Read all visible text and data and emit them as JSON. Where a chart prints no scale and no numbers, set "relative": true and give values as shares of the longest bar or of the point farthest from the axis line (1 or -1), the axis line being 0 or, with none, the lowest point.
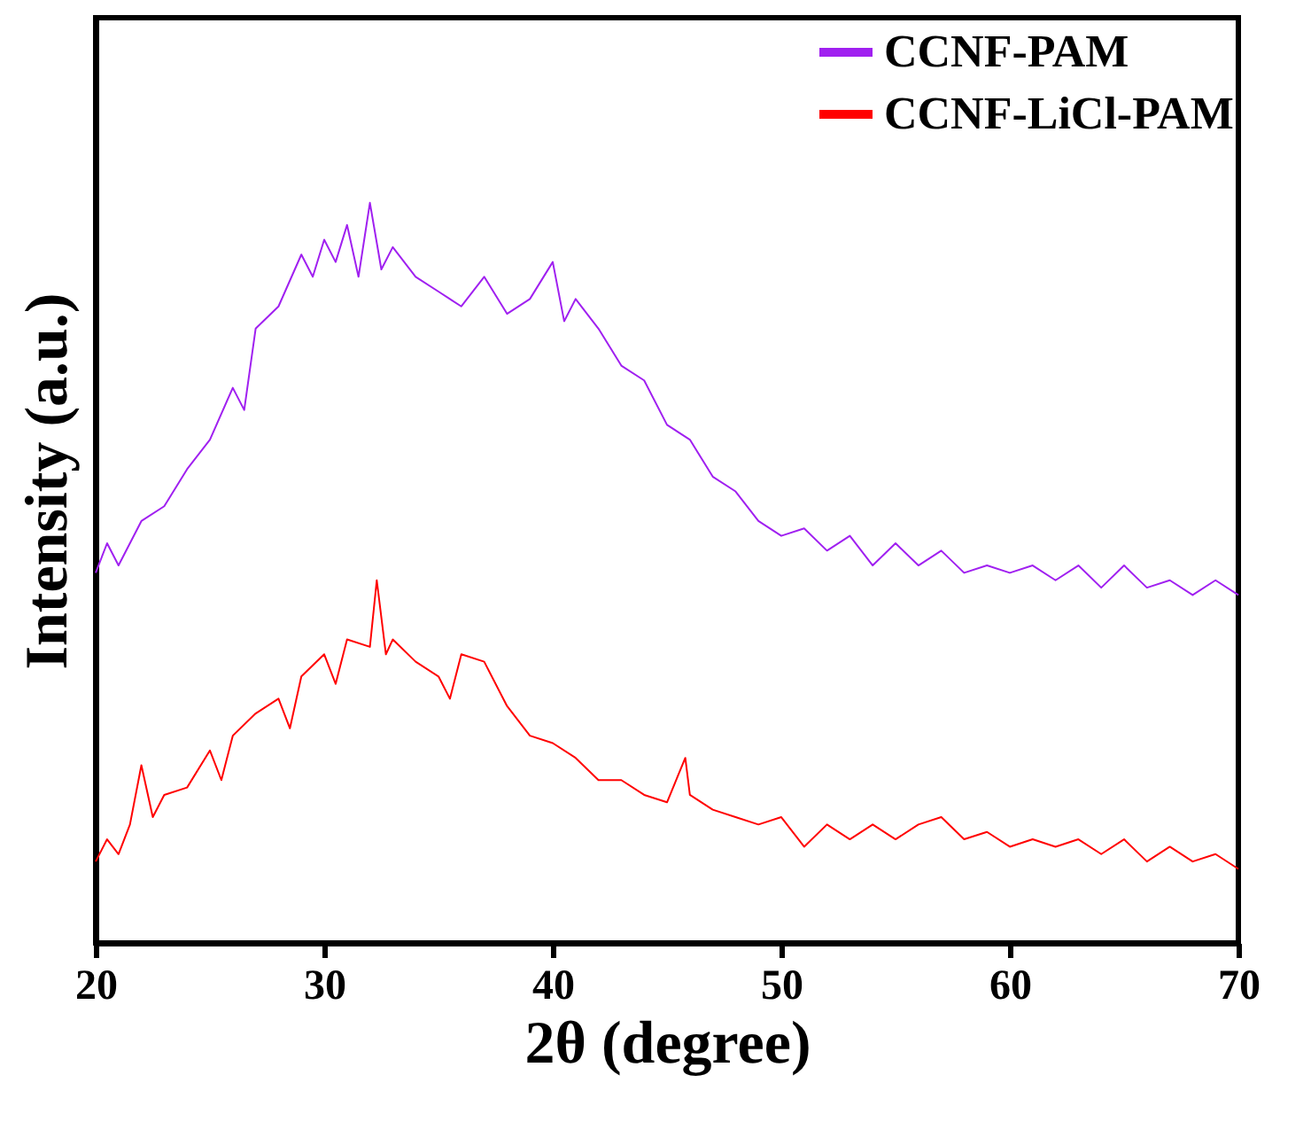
{
  "chart_data": {
    "type": "line",
    "relative": true,
    "xlabel": "2θ (degree)",
    "ylabel": "Intensity (a.u.)",
    "xlim": [
      20,
      70
    ],
    "xticks": [
      20,
      30,
      40,
      50,
      60,
      70
    ],
    "legend": "top right",
    "grid": false,
    "line_style": "solid",
    "marker": "none",
    "series": [
      {
        "name": "CCNF-PAM",
        "color": "#a020f0",
        "x": [
          20,
          20.5,
          21,
          22,
          23,
          24,
          25,
          26,
          26.5,
          27,
          28,
          29,
          29.5,
          30,
          30.5,
          31,
          31.5,
          32,
          32.5,
          33,
          34,
          35,
          36,
          37,
          38,
          39,
          40,
          40.5,
          41,
          42,
          43,
          44,
          45,
          46,
          47,
          48,
          49,
          50,
          51,
          52,
          53,
          54,
          55,
          56,
          57,
          58,
          59,
          60,
          61,
          62,
          63,
          64,
          65,
          66,
          67,
          68,
          69,
          70
        ],
        "values": [
          0.5,
          0.54,
          0.51,
          0.57,
          0.59,
          0.64,
          0.68,
          0.75,
          0.72,
          0.83,
          0.86,
          0.93,
          0.9,
          0.95,
          0.92,
          0.97,
          0.9,
          1.0,
          0.91,
          0.94,
          0.9,
          0.88,
          0.86,
          0.9,
          0.85,
          0.87,
          0.92,
          0.84,
          0.87,
          0.83,
          0.78,
          0.76,
          0.7,
          0.68,
          0.63,
          0.61,
          0.57,
          0.55,
          0.56,
          0.53,
          0.55,
          0.51,
          0.54,
          0.51,
          0.53,
          0.5,
          0.51,
          0.5,
          0.51,
          0.49,
          0.51,
          0.48,
          0.51,
          0.48,
          0.49,
          0.47,
          0.49,
          0.47
        ]
      },
      {
        "name": "CCNF-LiCl-PAM",
        "color": "#ff0000",
        "x": [
          20,
          20.5,
          21,
          21.5,
          22,
          22.5,
          23,
          24,
          25,
          25.5,
          26,
          27,
          28,
          28.5,
          29,
          30,
          30.5,
          31,
          32,
          32.3,
          32.7,
          33,
          34,
          35,
          35.5,
          36,
          37,
          38,
          39,
          40,
          41,
          42,
          43,
          44,
          45,
          45.8,
          46,
          47,
          48,
          49,
          50,
          51,
          52,
          53,
          54,
          55,
          56,
          57,
          58,
          59,
          60,
          61,
          62,
          63,
          64,
          65,
          66,
          67,
          68,
          69,
          70
        ],
        "values": [
          0.11,
          0.14,
          0.12,
          0.16,
          0.24,
          0.17,
          0.2,
          0.21,
          0.26,
          0.22,
          0.28,
          0.31,
          0.33,
          0.29,
          0.36,
          0.39,
          0.35,
          0.41,
          0.4,
          0.49,
          0.39,
          0.41,
          0.38,
          0.36,
          0.33,
          0.39,
          0.38,
          0.32,
          0.28,
          0.27,
          0.25,
          0.22,
          0.22,
          0.2,
          0.19,
          0.25,
          0.2,
          0.18,
          0.17,
          0.16,
          0.17,
          0.13,
          0.16,
          0.14,
          0.16,
          0.14,
          0.16,
          0.17,
          0.14,
          0.15,
          0.13,
          0.14,
          0.13,
          0.14,
          0.12,
          0.14,
          0.11,
          0.13,
          0.11,
          0.12,
          0.1
        ]
      }
    ]
  }
}
